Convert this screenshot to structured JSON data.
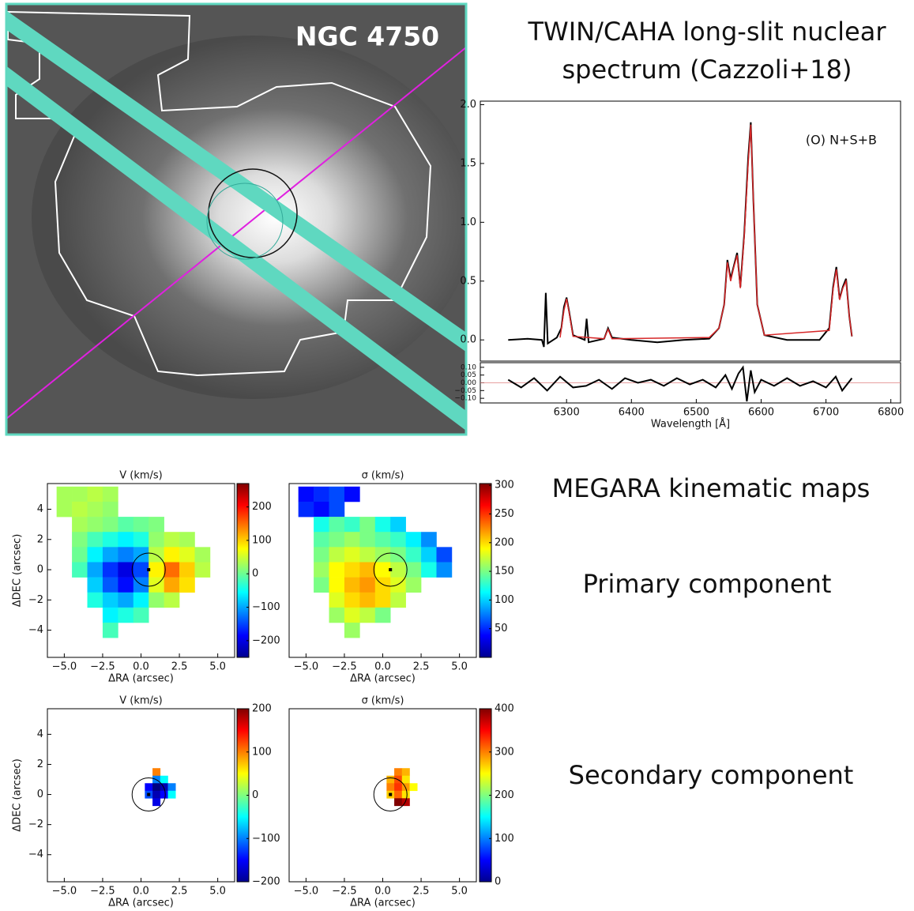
{
  "image": {
    "label": "NGC 4750"
  },
  "spectrum_title": [
    "TWIN/CAHA long-slit nuclear",
    "spectrum (Cazzoli+18)"
  ],
  "maps_title": "MEGARA kinematic maps",
  "primary_label": "Primary component",
  "secondary_label": "Secondary component",
  "chart_data": [
    {
      "type": "line",
      "annotation": "(O)  N+S+B",
      "xlim": [
        6167,
        6815
      ],
      "ylim": [
        -0.18,
        2.03
      ],
      "yticks": [
        {
          "value": 0,
          "label": "0.0"
        },
        {
          "value": 0.5,
          "label": "0.5"
        },
        {
          "value": 1,
          "label": "1.0"
        },
        {
          "value": 1.5,
          "label": "1.5"
        },
        {
          "value": 2,
          "label": "2.0"
        }
      ],
      "series": [
        {
          "color": "#000000",
          "x": [
            6210,
            6240,
            6262,
            6265,
            6268,
            6271,
            6285,
            6292,
            6296,
            6300,
            6304,
            6310,
            6328,
            6331,
            6334,
            6358,
            6364,
            6370,
            6400,
            6440,
            6480,
            6520,
            6535,
            6543,
            6548,
            6553,
            6558,
            6563,
            6568,
            6574,
            6580,
            6584,
            6588,
            6594,
            6605,
            6640,
            6690,
            6705,
            6711,
            6716,
            6721,
            6726,
            6731,
            6736,
            6740
          ],
          "values": [
            0.0,
            0.01,
            0.0,
            -0.06,
            0.4,
            -0.03,
            0.02,
            0.1,
            0.28,
            0.36,
            0.24,
            0.04,
            0.0,
            0.18,
            -0.02,
            0.01,
            0.1,
            0.02,
            0.0,
            -0.02,
            0.0,
            0.01,
            0.1,
            0.3,
            0.68,
            0.52,
            0.63,
            0.74,
            0.45,
            0.9,
            1.55,
            1.85,
            1.2,
            0.3,
            0.04,
            0.0,
            0.0,
            0.1,
            0.45,
            0.62,
            0.35,
            0.45,
            0.52,
            0.2,
            0.03
          ]
        },
        {
          "color": "#d62728",
          "x": [
            6290,
            6296,
            6300,
            6304,
            6310,
            6358,
            6364,
            6370,
            6520,
            6535,
            6543,
            6548,
            6553,
            6558,
            6563,
            6568,
            6574,
            6580,
            6584,
            6588,
            6594,
            6605,
            6705,
            6711,
            6716,
            6721,
            6726,
            6731,
            6736,
            6740
          ],
          "values": [
            0.02,
            0.25,
            0.35,
            0.23,
            0.03,
            0.01,
            0.09,
            0.01,
            0.02,
            0.1,
            0.3,
            0.66,
            0.5,
            0.62,
            0.72,
            0.44,
            0.88,
            1.5,
            1.83,
            1.2,
            0.3,
            0.04,
            0.08,
            0.43,
            0.6,
            0.34,
            0.44,
            0.5,
            0.2,
            0.03
          ]
        }
      ]
    },
    {
      "type": "line",
      "xlabel": "Wavelength [Å]",
      "xlim": [
        6167,
        6815
      ],
      "ylim": [
        -0.13,
        0.13
      ],
      "xticks": [
        6300,
        6400,
        6500,
        6600,
        6700,
        6800
      ],
      "yticks": [
        {
          "value": 0.1,
          "label": "0.10"
        },
        {
          "value": 0.05,
          "label": "0.05"
        },
        {
          "value": 0,
          "label": "0.00"
        },
        {
          "value": -0.05,
          "label": "−0.05"
        },
        {
          "value": -0.1,
          "label": "−0.10"
        }
      ],
      "series": [
        {
          "color": "#000000",
          "x": [
            6210,
            6230,
            6250,
            6270,
            6290,
            6310,
            6330,
            6350,
            6370,
            6390,
            6410,
            6430,
            6450,
            6470,
            6490,
            6510,
            6530,
            6545,
            6555,
            6565,
            6572,
            6578,
            6584,
            6590,
            6600,
            6620,
            6640,
            6660,
            6680,
            6700,
            6715,
            6725,
            6740
          ],
          "values": [
            0.02,
            -0.03,
            0.03,
            -0.05,
            0.04,
            -0.03,
            -0.02,
            0.02,
            -0.04,
            0.03,
            0.0,
            0.02,
            -0.02,
            0.03,
            -0.01,
            0.02,
            -0.03,
            0.05,
            -0.04,
            0.06,
            0.1,
            -0.12,
            0.08,
            -0.06,
            0.02,
            -0.02,
            0.03,
            -0.02,
            0.01,
            -0.03,
            0.04,
            -0.05,
            0.03
          ]
        }
      ]
    },
    {
      "type": "heatmap",
      "title": "V (km/s)",
      "xlabel": "ΔRA (arcsec)",
      "ylabel": "ΔDEC (arcsec)",
      "colormap": "jet",
      "xlim": [
        -6.1,
        6.1
      ],
      "ylim": [
        -5.8,
        5.7
      ],
      "zlim": [
        -250,
        270
      ],
      "xticks": [
        {
          "value": -5,
          "label": "−5.0"
        },
        {
          "value": -2.5,
          "label": "−2.5"
        },
        {
          "value": 0,
          "label": "0.0"
        },
        {
          "value": 2.5,
          "label": "2.5"
        },
        {
          "value": 5,
          "label": "5.0"
        }
      ],
      "yticks": [
        {
          "value": -4,
          "label": "−4"
        },
        {
          "value": -2,
          "label": "−2"
        },
        0,
        2,
        4
      ],
      "zticks": [
        {
          "value": -200,
          "label": "−200"
        },
        {
          "value": -100,
          "label": "−100"
        },
        0,
        100,
        200
      ],
      "x": [
        -5,
        -4,
        -3,
        -2,
        -1,
        0,
        1,
        2,
        3,
        4,
        5
      ],
      "y": [
        5,
        4,
        3,
        2,
        1,
        0,
        -1,
        -2,
        -3,
        -4
      ],
      "z": [
        [
          30,
          30,
          40,
          30,
          null,
          null,
          null,
          null,
          null,
          null,
          null
        ],
        [
          30,
          40,
          30,
          20,
          null,
          null,
          null,
          null,
          null,
          null,
          null
        ],
        [
          null,
          30,
          20,
          10,
          -10,
          0,
          10,
          null,
          null,
          null,
          null
        ],
        [
          null,
          10,
          -20,
          -40,
          -60,
          -40,
          20,
          40,
          30,
          null,
          null
        ],
        [
          null,
          0,
          -60,
          -100,
          -120,
          -100,
          40,
          80,
          60,
          30,
          null
        ],
        [
          null,
          -20,
          -100,
          -160,
          -200,
          -150,
          80,
          150,
          100,
          40,
          null
        ],
        [
          null,
          null,
          -80,
          -140,
          -180,
          -120,
          60,
          120,
          90,
          null,
          null
        ],
        [
          null,
          null,
          -40,
          -80,
          -100,
          -60,
          20,
          40,
          null,
          null,
          null
        ],
        [
          null,
          null,
          null,
          -60,
          -40,
          -20,
          null,
          null,
          null,
          null,
          null
        ],
        [
          null,
          null,
          null,
          -20,
          null,
          null,
          null,
          null,
          null,
          null,
          null
        ]
      ]
    },
    {
      "type": "heatmap",
      "title": "σ (km/s)",
      "xlabel": "ΔRA (arcsec)",
      "colormap": "jet",
      "xlim": [
        -6.1,
        6.1
      ],
      "ylim": [
        -5.8,
        5.7
      ],
      "zlim": [
        0,
        303
      ],
      "xticks": [
        {
          "value": -5,
          "label": "−5.0"
        },
        {
          "value": -2.5,
          "label": "−2.5"
        },
        {
          "value": 0,
          "label": "0.0"
        },
        {
          "value": 2.5,
          "label": "2.5"
        },
        {
          "value": 5,
          "label": "5.0"
        }
      ],
      "zticks": [
        50,
        100,
        150,
        200,
        250,
        300
      ],
      "x": [
        -5,
        -4,
        -3,
        -2,
        -1,
        0,
        1,
        2,
        3,
        4,
        5
      ],
      "y": [
        5,
        4,
        3,
        2,
        1,
        0,
        -1,
        -2,
        -3,
        -4
      ],
      "z": [
        [
          40,
          50,
          60,
          40,
          null,
          null,
          null,
          null,
          null,
          null,
          null
        ],
        [
          50,
          40,
          60,
          null,
          null,
          null,
          null,
          null,
          null,
          null,
          null
        ],
        [
          null,
          120,
          140,
          130,
          150,
          120,
          100,
          null,
          null,
          null,
          null
        ],
        [
          null,
          140,
          150,
          160,
          150,
          140,
          130,
          110,
          80,
          null,
          null
        ],
        [
          null,
          150,
          170,
          180,
          170,
          160,
          150,
          130,
          100,
          60,
          null
        ],
        [
          null,
          160,
          190,
          200,
          210,
          190,
          170,
          150,
          120,
          80,
          null
        ],
        [
          null,
          150,
          190,
          210,
          220,
          200,
          180,
          160,
          null,
          null,
          null
        ],
        [
          null,
          null,
          180,
          200,
          210,
          200,
          170,
          null,
          null,
          null,
          null
        ],
        [
          null,
          null,
          160,
          180,
          170,
          150,
          null,
          null,
          null,
          null,
          null
        ],
        [
          null,
          null,
          null,
          160,
          null,
          null,
          null,
          null,
          null,
          null,
          null
        ]
      ]
    },
    {
      "type": "heatmap",
      "title": "V (km/s)",
      "xlabel": "ΔRA (arcsec)",
      "ylabel": "ΔDEC (arcsec)",
      "colormap": "jet",
      "xlim": [
        -6.1,
        6.1
      ],
      "ylim": [
        -5.8,
        5.7
      ],
      "zlim": [
        -200,
        200
      ],
      "xticks": [
        {
          "value": -5,
          "label": "−5.0"
        },
        {
          "value": -2.5,
          "label": "−2.5"
        },
        {
          "value": 0,
          "label": "0.0"
        },
        {
          "value": 2.5,
          "label": "2.5"
        },
        {
          "value": 5,
          "label": "5.0"
        }
      ],
      "yticks": [
        {
          "value": -4,
          "label": "−4"
        },
        {
          "value": -2,
          "label": "−2"
        },
        0,
        2,
        4
      ],
      "zticks": [
        {
          "value": -200,
          "label": "−200"
        },
        {
          "value": -100,
          "label": "−100"
        },
        0,
        100,
        200
      ],
      "x": [
        0.5,
        1,
        1.5,
        2
      ],
      "y": [
        1.5,
        1,
        0.5,
        0,
        -0.5
      ],
      "z": [
        [
          null,
          100,
          null,
          null
        ],
        [
          null,
          -100,
          -50,
          null
        ],
        [
          -150,
          -200,
          -180,
          -100
        ],
        [
          -120,
          -180,
          -150,
          -50
        ],
        [
          null,
          -160,
          null,
          null
        ]
      ]
    },
    {
      "type": "heatmap",
      "title": "σ (km/s)",
      "xlabel": "ΔRA (arcsec)",
      "colormap": "jet",
      "xlim": [
        -6.1,
        6.1
      ],
      "ylim": [
        -5.8,
        5.7
      ],
      "zlim": [
        0,
        400
      ],
      "xticks": [
        {
          "value": -5,
          "label": "−5.0"
        },
        {
          "value": -2.5,
          "label": "−2.5"
        },
        {
          "value": 0,
          "label": "0.0"
        },
        {
          "value": 2.5,
          "label": "2.5"
        },
        {
          "value": 5,
          "label": "5.0"
        }
      ],
      "zticks": [
        0,
        100,
        200,
        300,
        400
      ],
      "x": [
        0.5,
        1,
        1.5,
        2
      ],
      "y": [
        1.5,
        1,
        0.5,
        0,
        -0.5
      ],
      "z": [
        [
          null,
          300,
          280,
          null
        ],
        [
          280,
          320,
          260,
          null
        ],
        [
          300,
          330,
          290,
          250
        ],
        [
          270,
          310,
          260,
          null
        ],
        [
          null,
          400,
          380,
          null
        ]
      ]
    }
  ]
}
